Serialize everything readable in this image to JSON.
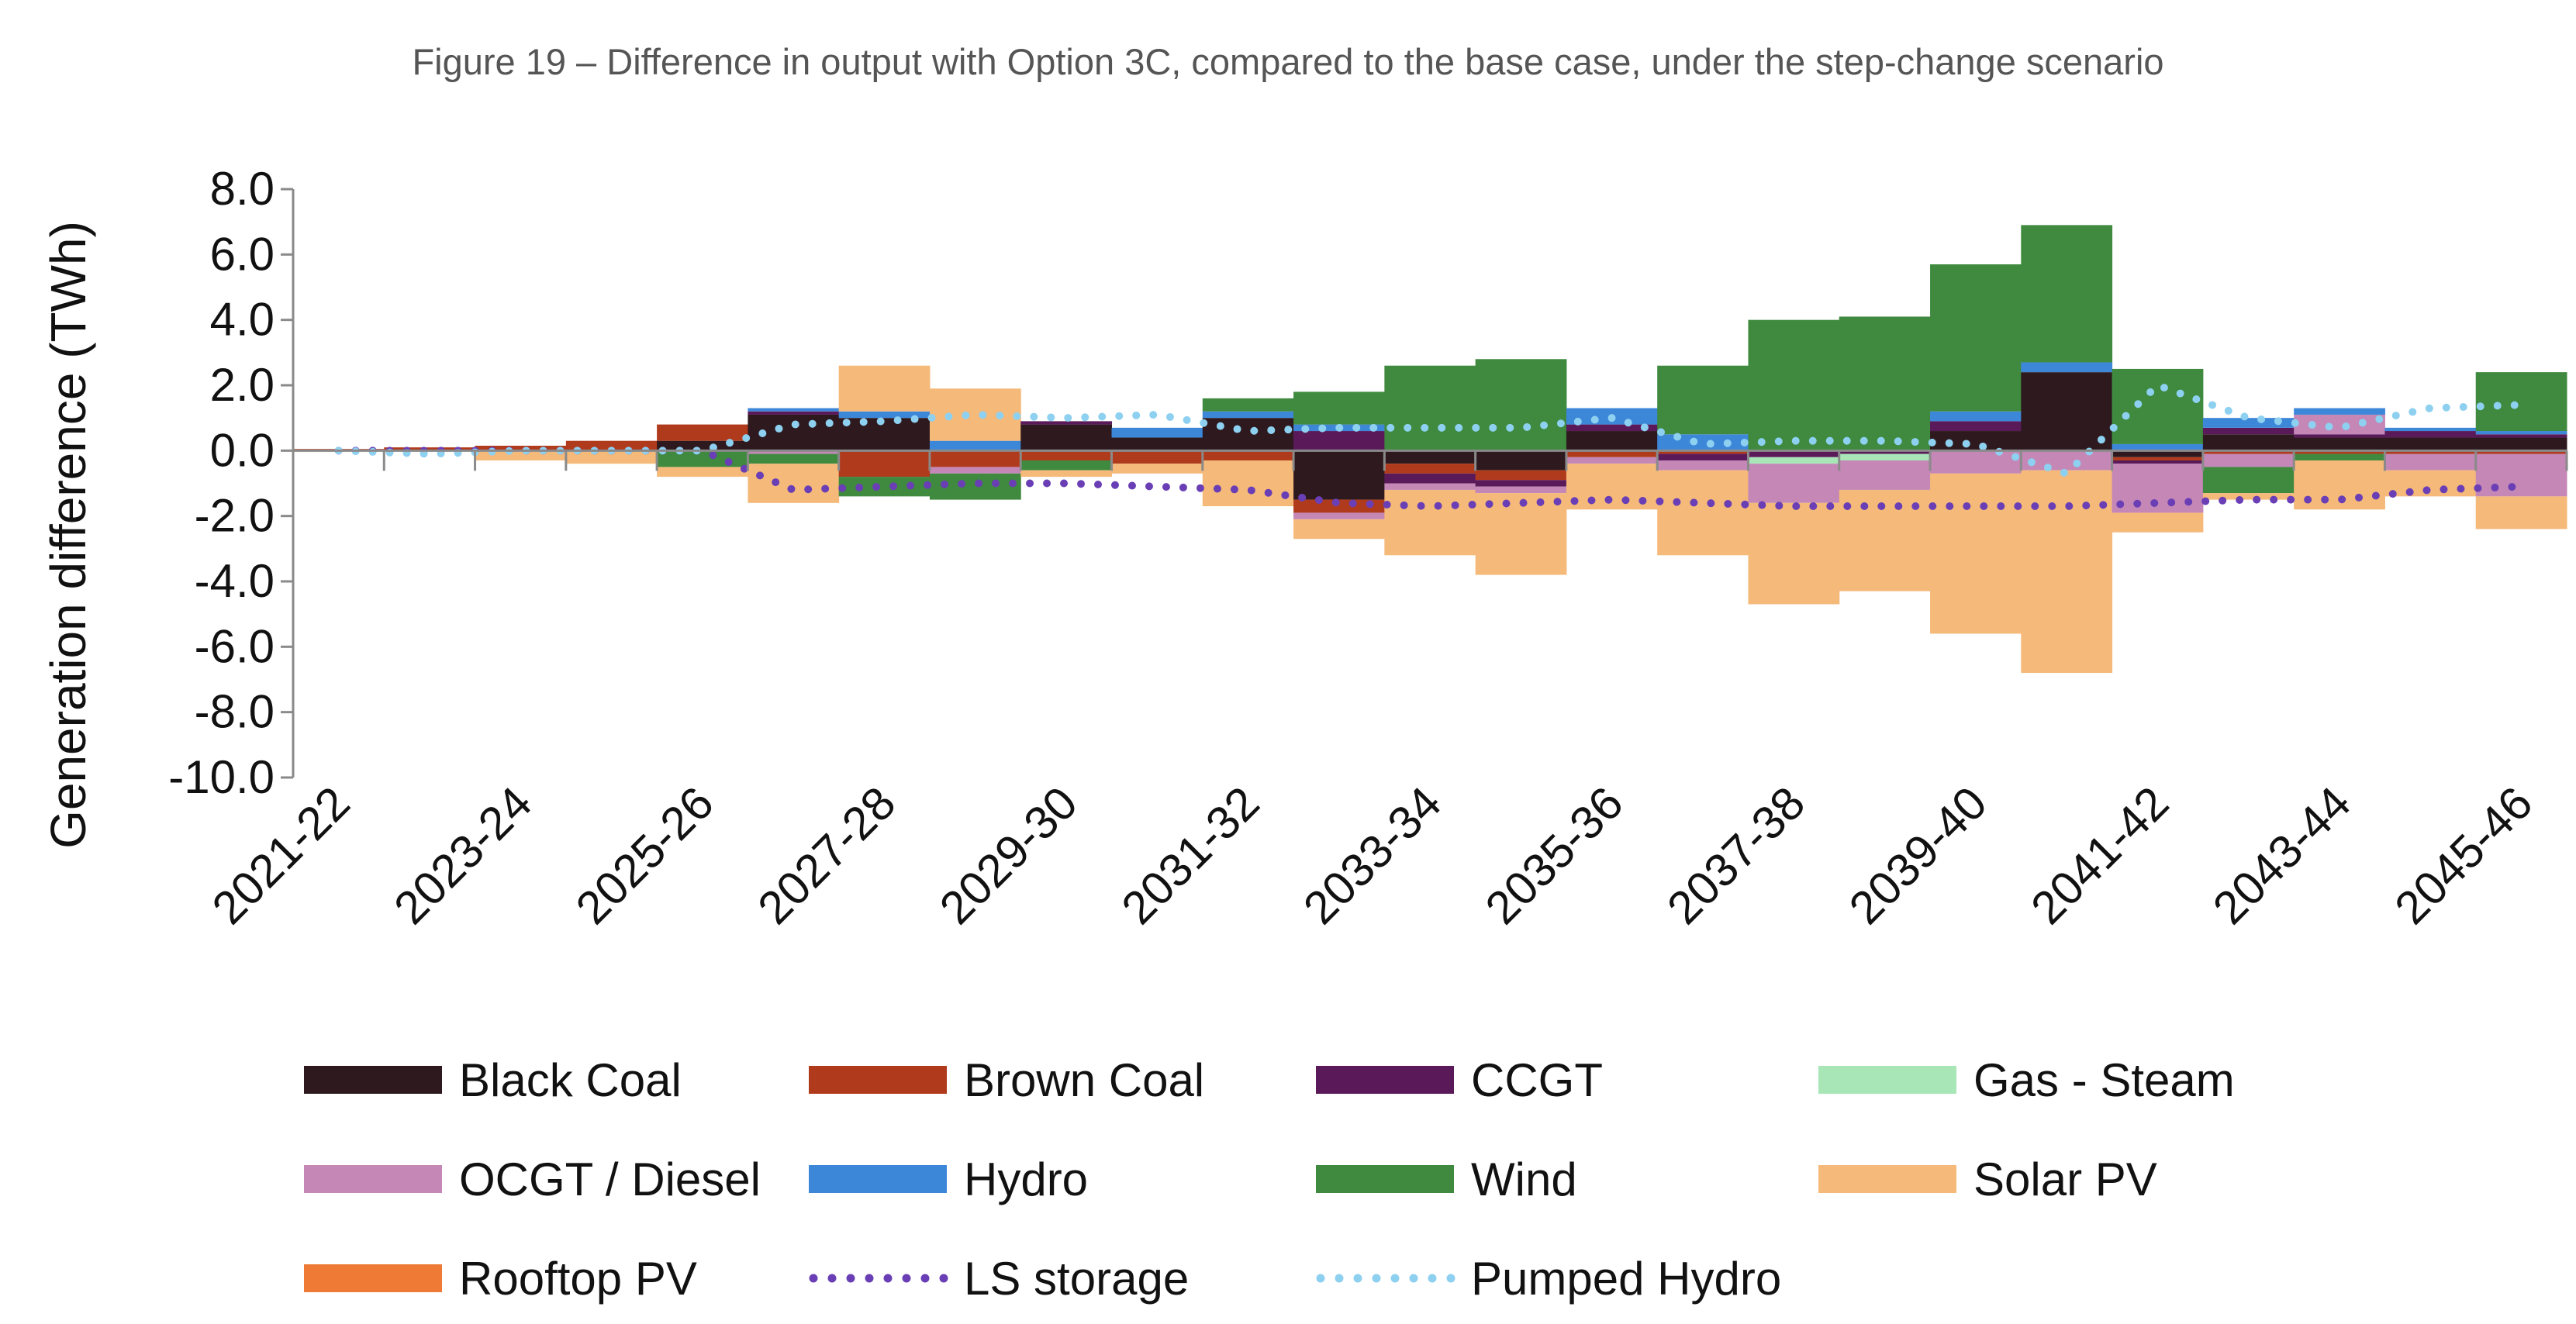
{
  "chart_data": {
    "type": "bar",
    "title": "Figure 19 – Difference in output with Option 3C, compared to the base case, under the step-change scenario",
    "ylabel": "Generation difference (TWh)",
    "xlabel": "",
    "ylim": [
      -10,
      8
    ],
    "yticks": [
      "8.0",
      "6.0",
      "4.0",
      "2.0",
      "0.0",
      "-2.0",
      "-4.0",
      "-6.0",
      "-8.0",
      "-10.0"
    ],
    "categories": [
      "2021-22",
      "2022-23",
      "2023-24",
      "2024-25",
      "2025-26",
      "2026-27",
      "2027-28",
      "2028-29",
      "2029-30",
      "2030-31",
      "2031-32",
      "2032-33",
      "2033-34",
      "2034-35",
      "2035-36",
      "2036-37",
      "2037-38",
      "2038-39",
      "2039-40",
      "2040-41",
      "2041-42",
      "2042-43",
      "2043-44",
      "2044-45",
      "2045-46"
    ],
    "xtick_labels": [
      "2021-22",
      "2023-24",
      "2025-26",
      "2027-28",
      "2029-30",
      "2031-32",
      "2033-34",
      "2035-36",
      "2037-38",
      "2039-40",
      "2041-42",
      "2043-44",
      "2045-46"
    ],
    "legend_position": "bottom",
    "series": [
      {
        "name": "Black Coal",
        "color": "#2e1a1e",
        "style": "bar",
        "values": [
          0,
          0,
          0,
          0,
          0.3,
          1.1,
          1.0,
          0,
          0.8,
          0.4,
          1.0,
          -1.5,
          -0.4,
          -0.6,
          0.6,
          0,
          0,
          0,
          0.6,
          2.4,
          -0.2,
          0.5,
          0.4,
          0.4,
          0.4
        ]
      },
      {
        "name": "Brown Coal",
        "color": "#b03a1c",
        "style": "bar",
        "values": [
          0.05,
          0.1,
          0.15,
          0.3,
          0.5,
          0,
          -0.8,
          -0.5,
          -0.3,
          -0.4,
          -0.3,
          -0.4,
          -0.3,
          -0.3,
          -0.2,
          -0.1,
          0,
          0,
          0,
          0,
          -0.1,
          -0.1,
          -0.1,
          -0.1,
          -0.1
        ]
      },
      {
        "name": "CCGT",
        "color": "#5a1a5a",
        "style": "bar",
        "values": [
          0,
          0,
          0,
          0,
          0,
          0.1,
          0,
          0,
          0.1,
          0,
          0,
          0.6,
          -0.3,
          -0.2,
          0.2,
          -0.2,
          -0.2,
          -0.1,
          0.3,
          0,
          -0.1,
          0.2,
          0.1,
          0.2,
          0.1
        ]
      },
      {
        "name": "Gas - Steam",
        "color": "#a8e6b8",
        "style": "bar",
        "values": [
          0,
          0,
          0,
          0,
          0,
          0,
          0,
          0,
          0,
          0,
          0,
          0,
          0,
          0,
          0,
          0,
          -0.2,
          -0.2,
          0,
          0,
          0,
          0,
          0,
          0,
          0
        ]
      },
      {
        "name": "OCGT / Diesel",
        "color": "#c487b6",
        "style": "bar",
        "values": [
          0,
          0,
          0,
          0,
          0,
          -0.1,
          0,
          -0.2,
          0,
          0,
          0,
          -0.2,
          -0.2,
          -0.2,
          -0.2,
          -0.3,
          -1.2,
          -0.9,
          -0.7,
          -0.6,
          -1.5,
          -0.4,
          0.6,
          -0.5,
          -1.3
        ]
      },
      {
        "name": "Hydro",
        "color": "#3d87d9",
        "style": "bar",
        "values": [
          0,
          0,
          0,
          0,
          0,
          0.1,
          0.2,
          0.3,
          0,
          0.3,
          0.2,
          0.2,
          0,
          0,
          0.5,
          0.5,
          0,
          0,
          0.3,
          0.3,
          0.2,
          0.3,
          0.2,
          0.1,
          0.1
        ]
      },
      {
        "name": "Wind",
        "color": "#3f8a3f",
        "style": "bar",
        "values": [
          0,
          0,
          0,
          0,
          -0.5,
          -0.3,
          -0.6,
          -0.8,
          -0.3,
          0,
          0.4,
          1.0,
          2.6,
          2.8,
          0,
          2.1,
          4.0,
          4.1,
          4.5,
          4.2,
          2.3,
          -0.8,
          -0.2,
          0,
          1.8
        ]
      },
      {
        "name": "Solar PV",
        "color": "#f5b97a",
        "style": "bar",
        "values": [
          0,
          0,
          -0.3,
          -0.4,
          -0.3,
          -1.2,
          1.4,
          1.6,
          -0.2,
          -0.3,
          -1.4,
          -0.6,
          -2.0,
          -2.5,
          -1.4,
          -2.6,
          -3.1,
          -3.1,
          -4.9,
          -6.2,
          -0.6,
          -0.2,
          -1.5,
          -0.8,
          -1.0
        ]
      },
      {
        "name": "Rooftop PV",
        "color": "#ef7a35",
        "style": "bar",
        "values": [
          0,
          0,
          0,
          0,
          0,
          0,
          0,
          0,
          0,
          0,
          0,
          0,
          0,
          0,
          0,
          0,
          0,
          0,
          0,
          0,
          0,
          0,
          0,
          0,
          0
        ]
      },
      {
        "name": "LS storage",
        "color": "#6a3fb5",
        "style": "dotted",
        "values": [
          0,
          0,
          0,
          0,
          0,
          -1.2,
          -1.1,
          -1.0,
          -1.0,
          -1.1,
          -1.2,
          -1.6,
          -1.7,
          -1.6,
          -1.5,
          -1.6,
          -1.7,
          -1.7,
          -1.7,
          -1.7,
          -1.6,
          -1.5,
          -1.5,
          -1.2,
          -1.1
        ]
      },
      {
        "name": "Pumped Hydro",
        "color": "#8ed0f0",
        "style": "dotted",
        "values": [
          0,
          -0.1,
          0,
          0,
          0,
          0.8,
          0.9,
          1.1,
          1.0,
          1.1,
          0.6,
          0.7,
          0.7,
          0.7,
          1.0,
          0.2,
          0.3,
          0.3,
          0.2,
          -0.7,
          2.0,
          1.0,
          0.7,
          1.3,
          1.4
        ]
      }
    ]
  }
}
